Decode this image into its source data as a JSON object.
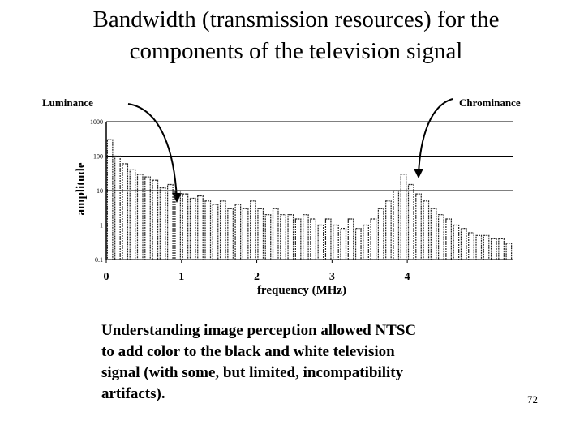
{
  "title": [
    "Bandwidth (transmission resources) for the",
    "components of the television signal"
  ],
  "chart_data": {
    "type": "bar",
    "annotations": {
      "luminance": "Luminance",
      "chrominance": "Chrominance"
    },
    "y_label": "amplitude",
    "x_label": "frequency (MHz)",
    "log_y": true,
    "grid": true,
    "color": "#222222",
    "xlim": [
      0,
      5.4
    ],
    "xticks": [
      0,
      1,
      2,
      3,
      4
    ],
    "ylim": [
      0.1,
      1000
    ],
    "yticks": [
      0.1,
      1,
      10,
      100,
      1000
    ],
    "x": [
      0.05,
      0.15,
      0.25,
      0.35,
      0.45,
      0.55,
      0.65,
      0.75,
      0.85,
      0.95,
      1.05,
      1.15,
      1.25,
      1.35,
      1.45,
      1.55,
      1.65,
      1.75,
      1.85,
      1.95,
      2.05,
      2.15,
      2.25,
      2.35,
      2.45,
      2.55,
      2.65,
      2.75,
      2.85,
      2.95,
      3.05,
      3.15,
      3.25,
      3.35,
      3.45,
      3.55,
      3.65,
      3.75,
      3.85,
      3.95,
      4.05,
      4.15,
      4.25,
      4.35,
      4.45,
      4.55,
      4.65,
      4.75,
      4.85,
      4.95,
      5.05,
      5.15,
      5.25,
      5.35
    ],
    "values": [
      300,
      100,
      60,
      40,
      30,
      25,
      20,
      12,
      15,
      10,
      8,
      6,
      7,
      5,
      4,
      5,
      3,
      4,
      3,
      5,
      3,
      2,
      3,
      2,
      2,
      1.5,
      2,
      1.5,
      1,
      1.5,
      1,
      0.8,
      1.5,
      0.8,
      1,
      1.5,
      3,
      5,
      10,
      30,
      15,
      8,
      5,
      3,
      2,
      1.5,
      1,
      0.8,
      0.6,
      0.5,
      0.5,
      0.4,
      0.4,
      0.3
    ]
  },
  "body": [
    "Understanding image perception allowed NTSC",
    "to add color to the black and white television",
    "signal (with some, but limited, incompatibility",
    "artifacts)."
  ],
  "page_number": "72"
}
